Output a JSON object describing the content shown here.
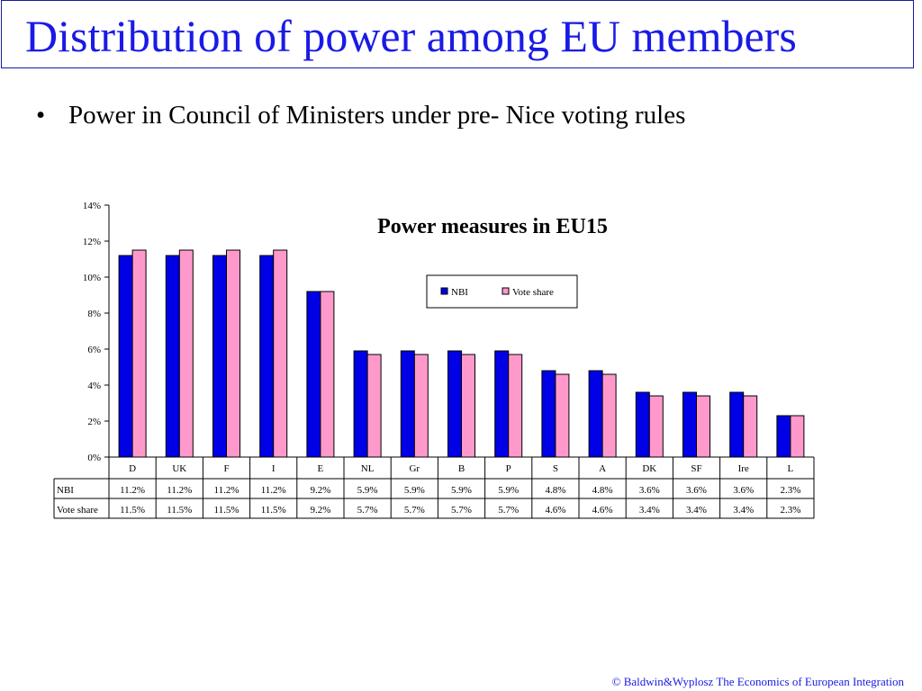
{
  "slide": {
    "title": "Distribution of power among EU members",
    "bullet_symbol": "•",
    "bullet_text": "Power in Council of Ministers under pre- Nice voting rules",
    "footer": "© Baldwin&Wyplosz The Economics of European Integration"
  },
  "chart_data": {
    "type": "bar",
    "title": "Power measures in EU15",
    "categories": [
      "D",
      "UK",
      "F",
      "I",
      "E",
      "NL",
      "Gr",
      "B",
      "P",
      "S",
      "A",
      "DK",
      "SF",
      "Ire",
      "L"
    ],
    "series": [
      {
        "name": "NBI",
        "color": "#0000e6",
        "values": [
          11.2,
          11.2,
          11.2,
          11.2,
          9.2,
          5.9,
          5.9,
          5.9,
          5.9,
          4.8,
          4.8,
          3.6,
          3.6,
          3.6,
          2.3
        ],
        "labels": [
          "11.2%",
          "11.2%",
          "11.2%",
          "11.2%",
          "9.2%",
          "5.9%",
          "5.9%",
          "5.9%",
          "5.9%",
          "4.8%",
          "4.8%",
          "3.6%",
          "3.6%",
          "3.6%",
          "2.3%"
        ]
      },
      {
        "name": "Vote share",
        "color": "#ff99cc",
        "values": [
          11.5,
          11.5,
          11.5,
          11.5,
          9.2,
          5.7,
          5.7,
          5.7,
          5.7,
          4.6,
          4.6,
          3.4,
          3.4,
          3.4,
          2.3
        ],
        "labels": [
          "11.5%",
          "11.5%",
          "11.5%",
          "11.5%",
          "9.2%",
          "5.7%",
          "5.7%",
          "5.7%",
          "5.7%",
          "4.6%",
          "4.6%",
          "3.4%",
          "3.4%",
          "3.4%",
          "2.3%"
        ]
      }
    ],
    "yticks": [
      "0%",
      "2%",
      "4%",
      "6%",
      "8%",
      "10%",
      "12%",
      "14%"
    ],
    "ylim": [
      0,
      14
    ],
    "grid": false,
    "legend_position": "top-right",
    "data_table": true
  }
}
